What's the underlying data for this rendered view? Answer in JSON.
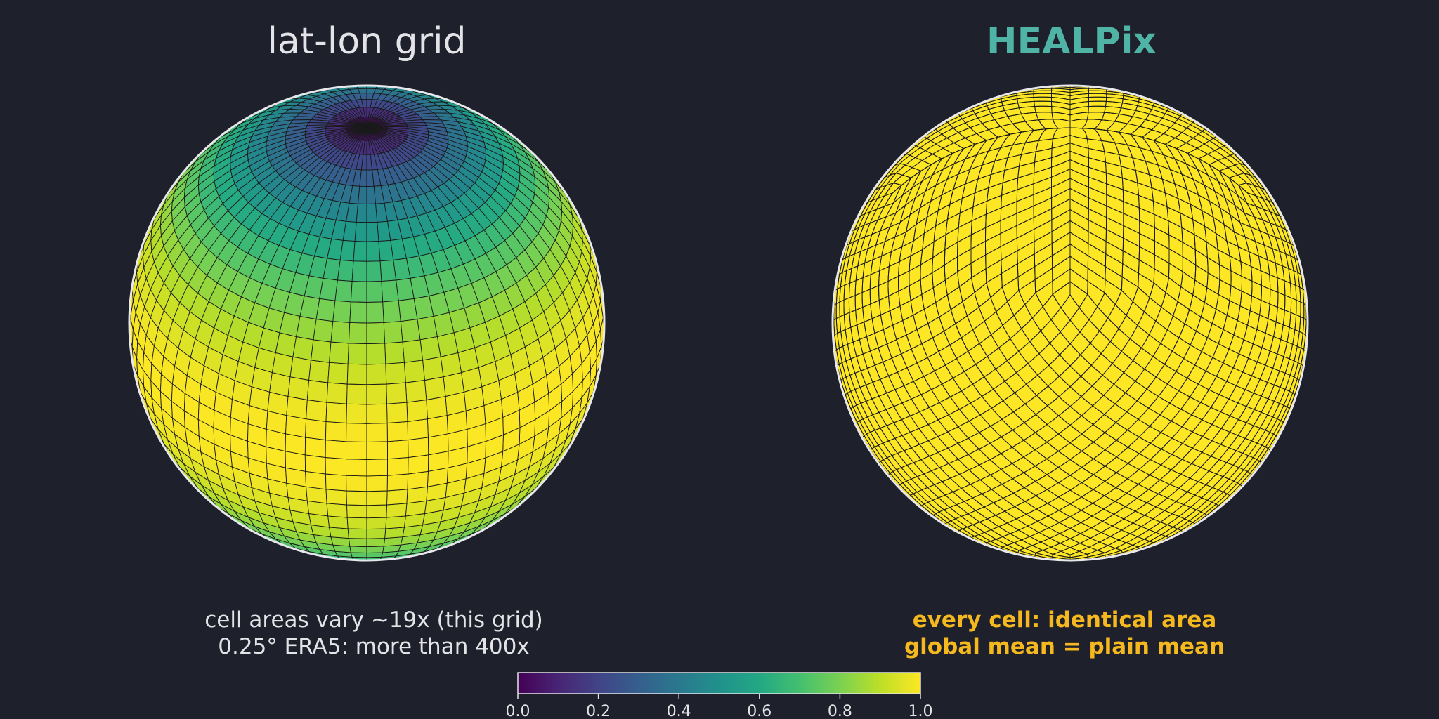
{
  "panels": {
    "left": {
      "title": "lat-lon grid",
      "caption_line1": "cell areas vary ~19x (this grid)",
      "caption_line2": "0.25° ERA5: more than 400x"
    },
    "right": {
      "title": "HEALPix",
      "caption_line1": "every cell: identical area",
      "caption_line2": "global mean = plain mean"
    }
  },
  "colorbar": {
    "colormap": "viridis",
    "min": 0.0,
    "max": 1.0,
    "ticks": [
      "0.0",
      "0.2",
      "0.4",
      "0.6",
      "0.8",
      "1.0"
    ]
  },
  "colors": {
    "background": "#1e202b",
    "title_left": "#e4e4e8",
    "title_right": "#4fb3a6",
    "caption_right": "#f5b81e",
    "healpix_fill": "#fde725",
    "grid_line": "#1a1a1a",
    "globe_outline": "#e8e8ec"
  }
}
